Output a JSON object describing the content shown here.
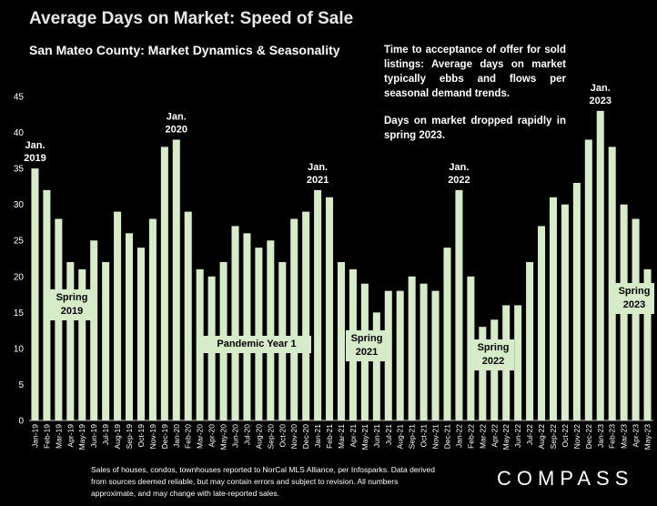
{
  "header": {
    "title": "Average Days on Market:  Speed of Sale",
    "subtitle": "San Mateo County: Market Dynamics & Seasonality"
  },
  "note": {
    "p1": "Time to acceptance of offer for sold listings: Average days on market typically ebbs and flows per seasonal demand trends.",
    "p2": "Days on market dropped rapidly in spring 2023."
  },
  "chart_data": {
    "type": "bar",
    "bar_color": "#d6ecc8",
    "ylim": [
      0,
      45
    ],
    "yticks": [
      0,
      5,
      10,
      15,
      20,
      25,
      30,
      35,
      40,
      45
    ],
    "grid": false,
    "categories": [
      "Jan-19",
      "Feb-19",
      "Mar-19",
      "Apr-19",
      "May-19",
      "Jun-19",
      "Jul-19",
      "Aug-19",
      "Sep-19",
      "Oct-19",
      "Nov-19",
      "Dec-19",
      "Jan-20",
      "Feb-20",
      "Mar-20",
      "Apr-20",
      "May-20",
      "Jun-20",
      "Jul-20",
      "Aug-20",
      "Sep-20",
      "Oct-20",
      "Nov-20",
      "Dec-20",
      "Jan-21",
      "Feb-21",
      "Mar-21",
      "Apr-21",
      "May-21",
      "Jun-21",
      "Jul-21",
      "Aug-21",
      "Sep-21",
      "Oct-21",
      "Nov-21",
      "Dec-21",
      "Jan-22",
      "Feb-22",
      "Mar-22",
      "Apr-22",
      "May-22",
      "Jun-22",
      "Jul-22",
      "Aug-22",
      "Sep-22",
      "Oct-22",
      "Nov-22",
      "Dec-22",
      "Jan-23",
      "Feb-23",
      "Mar-23",
      "Apr-23",
      "May-23"
    ],
    "values": [
      35,
      32,
      28,
      22,
      21,
      25,
      22,
      29,
      26,
      24,
      28,
      38,
      39,
      29,
      21,
      20,
      22,
      27,
      26,
      24,
      25,
      22,
      28,
      29,
      32,
      31,
      22,
      21,
      19,
      15,
      18,
      18,
      20,
      19,
      18,
      24,
      32,
      20,
      13,
      14,
      16,
      16,
      22,
      27,
      31,
      30,
      33,
      39,
      43,
      38,
      30,
      28,
      21
    ],
    "annotations": [
      {
        "text": "Jan.\n2019",
        "category": "Jan-19",
        "kind": "label"
      },
      {
        "text": "Jan.\n2020",
        "category": "Jan-20",
        "kind": "label"
      },
      {
        "text": "Jan.\n2021",
        "category": "Jan-21",
        "kind": "label"
      },
      {
        "text": "Jan.\n2022",
        "category": "Jan-22",
        "kind": "label"
      },
      {
        "text": "Jan.\n2023",
        "category": "Jan-23",
        "kind": "label"
      }
    ],
    "callouts": [
      {
        "text": "Spring\n2019"
      },
      {
        "text": "Pandemic Year 1"
      },
      {
        "text": "Spring\n2021"
      },
      {
        "text": "Spring\n2022"
      },
      {
        "text": "Spring\n2023"
      }
    ]
  },
  "footer": {
    "footnote": "Sales of houses, condos, townhouses reported to NorCal MLS Alliance, per Infosparks. Data derived from sources deemed reliable, but may contain errors and subject to revision. All numbers approximate, and may change with late-reported sales.",
    "logo_text": "COMPASS"
  }
}
